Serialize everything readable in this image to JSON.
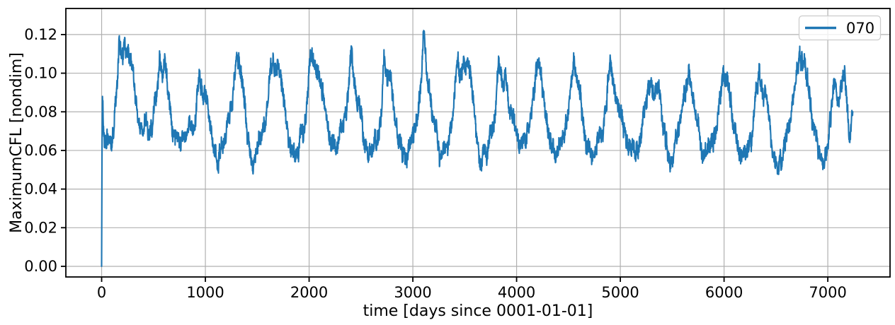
{
  "figure": {
    "background": "#ffffff"
  },
  "chart_data": {
    "type": "line",
    "title": "",
    "xlabel": "time [days since 0001-01-01]",
    "ylabel": "MaximumCFL [nondim]",
    "grid": true,
    "grid_color": "#b0b0b0",
    "axis_color": "#000000",
    "xlim": [
      -345,
      7600
    ],
    "ylim": [
      -0.0055,
      0.1335
    ],
    "xtick_values": [
      0,
      1000,
      2000,
      3000,
      4000,
      5000,
      6000,
      7000
    ],
    "xtick_labels": [
      "0",
      "1000",
      "2000",
      "3000",
      "4000",
      "5000",
      "6000",
      "7000"
    ],
    "ytick_values": [
      0.0,
      0.02,
      0.04,
      0.06,
      0.08,
      0.1,
      0.12
    ],
    "ytick_labels": [
      "0.00",
      "0.02",
      "0.04",
      "0.06",
      "0.08",
      "0.10",
      "0.12"
    ],
    "legend": {
      "position": "upper right",
      "edge_color": "#cccccc",
      "face_color": "rgba(255,255,255,0.8)"
    },
    "series": [
      {
        "name": "070",
        "color": "#1f77b4",
        "line_width": 2.1,
        "x_start": 0,
        "x_end": 7240,
        "description": "Daily maximum CFL, ~20 annual cycles: starts at 0, jumps to ~0.09, oscillates around 0.06-0.12 with summer peaks and winter troughs; absolute max ~0.131 near day 170, typical troughs ~0.055.",
        "envelope_points": [
          [
            0,
            0.0
          ],
          [
            4,
            0.06
          ],
          [
            8,
            0.088
          ],
          [
            14,
            0.076
          ],
          [
            25,
            0.068
          ],
          [
            55,
            0.065
          ],
          [
            85,
            0.065
          ],
          [
            115,
            0.072
          ],
          [
            140,
            0.09
          ],
          [
            155,
            0.105
          ],
          [
            170,
            0.12
          ],
          [
            182,
            0.112
          ],
          [
            195,
            0.104
          ],
          [
            215,
            0.111
          ],
          [
            235,
            0.105
          ],
          [
            258,
            0.111
          ],
          [
            285,
            0.102
          ],
          [
            310,
            0.096
          ],
          [
            335,
            0.085
          ],
          [
            365,
            0.076
          ],
          [
            395,
            0.072
          ],
          [
            420,
            0.077
          ],
          [
            450,
            0.071
          ],
          [
            480,
            0.075
          ],
          [
            510,
            0.081
          ],
          [
            540,
            0.095
          ],
          [
            560,
            0.113
          ],
          [
            580,
            0.104
          ],
          [
            605,
            0.108
          ],
          [
            635,
            0.096
          ],
          [
            665,
            0.081
          ],
          [
            695,
            0.068
          ],
          [
            730,
            0.062
          ],
          [
            765,
            0.06
          ],
          [
            795,
            0.063
          ],
          [
            825,
            0.068
          ],
          [
            855,
            0.072
          ],
          [
            885,
            0.073
          ],
          [
            915,
            0.085
          ],
          [
            938,
            0.101
          ],
          [
            962,
            0.096
          ],
          [
            990,
            0.091
          ],
          [
            1015,
            0.086
          ],
          [
            1045,
            0.075
          ],
          [
            1075,
            0.067
          ],
          [
            1105,
            0.06
          ],
          [
            1140,
            0.058
          ],
          [
            1170,
            0.062
          ],
          [
            1200,
            0.068
          ],
          [
            1230,
            0.076
          ],
          [
            1262,
            0.083
          ],
          [
            1290,
            0.102
          ],
          [
            1305,
            0.108
          ],
          [
            1345,
            0.098
          ],
          [
            1375,
            0.085
          ],
          [
            1405,
            0.072
          ],
          [
            1435,
            0.061
          ],
          [
            1465,
            0.056
          ],
          [
            1495,
            0.059
          ],
          [
            1525,
            0.065
          ],
          [
            1555,
            0.072
          ],
          [
            1585,
            0.08
          ],
          [
            1615,
            0.098
          ],
          [
            1650,
            0.107
          ],
          [
            1675,
            0.101
          ],
          [
            1700,
            0.104
          ],
          [
            1730,
            0.093
          ],
          [
            1760,
            0.081
          ],
          [
            1790,
            0.07
          ],
          [
            1820,
            0.063
          ],
          [
            1850,
            0.058
          ],
          [
            1880,
            0.059
          ],
          [
            1910,
            0.064
          ],
          [
            1940,
            0.07
          ],
          [
            1970,
            0.08
          ],
          [
            2000,
            0.104
          ],
          [
            2030,
            0.105
          ],
          [
            2060,
            0.1
          ],
          [
            2090,
            0.098
          ],
          [
            2120,
            0.092
          ],
          [
            2150,
            0.081
          ],
          [
            2180,
            0.07
          ],
          [
            2210,
            0.062
          ],
          [
            2245,
            0.058
          ],
          [
            2275,
            0.061
          ],
          [
            2305,
            0.066
          ],
          [
            2335,
            0.073
          ],
          [
            2365,
            0.086
          ],
          [
            2395,
            0.108
          ],
          [
            2408,
            0.114
          ],
          [
            2425,
            0.1
          ],
          [
            2455,
            0.089
          ],
          [
            2485,
            0.086
          ],
          [
            2515,
            0.073
          ],
          [
            2545,
            0.061
          ],
          [
            2575,
            0.055
          ],
          [
            2605,
            0.058
          ],
          [
            2635,
            0.063
          ],
          [
            2665,
            0.071
          ],
          [
            2695,
            0.081
          ],
          [
            2725,
            0.105
          ],
          [
            2755,
            0.099
          ],
          [
            2785,
            0.096
          ],
          [
            2815,
            0.086
          ],
          [
            2845,
            0.073
          ],
          [
            2875,
            0.063
          ],
          [
            2905,
            0.057
          ],
          [
            2935,
            0.056
          ],
          [
            2965,
            0.061
          ],
          [
            2995,
            0.066
          ],
          [
            3025,
            0.073
          ],
          [
            3055,
            0.086
          ],
          [
            3085,
            0.102
          ],
          [
            3105,
            0.119
          ],
          [
            3130,
            0.101
          ],
          [
            3160,
            0.091
          ],
          [
            3190,
            0.081
          ],
          [
            3220,
            0.069
          ],
          [
            3250,
            0.059
          ],
          [
            3280,
            0.055
          ],
          [
            3310,
            0.061
          ],
          [
            3340,
            0.066
          ],
          [
            3370,
            0.076
          ],
          [
            3400,
            0.092
          ],
          [
            3430,
            0.109
          ],
          [
            3460,
            0.101
          ],
          [
            3490,
            0.099
          ],
          [
            3520,
            0.109
          ],
          [
            3550,
            0.104
          ],
          [
            3580,
            0.09
          ],
          [
            3610,
            0.071
          ],
          [
            3645,
            0.057
          ],
          [
            3675,
            0.053
          ],
          [
            3705,
            0.059
          ],
          [
            3735,
            0.065
          ],
          [
            3765,
            0.072
          ],
          [
            3795,
            0.081
          ],
          [
            3820,
            0.104
          ],
          [
            3850,
            0.1
          ],
          [
            3885,
            0.099
          ],
          [
            3915,
            0.09
          ],
          [
            3945,
            0.081
          ],
          [
            3975,
            0.071
          ],
          [
            4005,
            0.066
          ],
          [
            4035,
            0.064
          ],
          [
            4065,
            0.066
          ],
          [
            4095,
            0.069
          ],
          [
            4125,
            0.076
          ],
          [
            4155,
            0.089
          ],
          [
            4190,
            0.106
          ],
          [
            4220,
            0.1
          ],
          [
            4250,
            0.091
          ],
          [
            4280,
            0.082
          ],
          [
            4310,
            0.072
          ],
          [
            4340,
            0.064
          ],
          [
            4370,
            0.06
          ],
          [
            4400,
            0.059
          ],
          [
            4425,
            0.061
          ],
          [
            4455,
            0.066
          ],
          [
            4485,
            0.073
          ],
          [
            4515,
            0.086
          ],
          [
            4550,
            0.106
          ],
          [
            4580,
            0.099
          ],
          [
            4610,
            0.089
          ],
          [
            4640,
            0.077
          ],
          [
            4670,
            0.066
          ],
          [
            4700,
            0.061
          ],
          [
            4735,
            0.059
          ],
          [
            4765,
            0.061
          ],
          [
            4795,
            0.064
          ],
          [
            4825,
            0.073
          ],
          [
            4860,
            0.086
          ],
          [
            4900,
            0.103
          ],
          [
            4930,
            0.099
          ],
          [
            4960,
            0.091
          ],
          [
            4990,
            0.083
          ],
          [
            5020,
            0.073
          ],
          [
            5050,
            0.064
          ],
          [
            5080,
            0.059
          ],
          [
            5115,
            0.057
          ],
          [
            5145,
            0.059
          ],
          [
            5175,
            0.062
          ],
          [
            5205,
            0.07
          ],
          [
            5235,
            0.08
          ],
          [
            5265,
            0.092
          ],
          [
            5290,
            0.097
          ],
          [
            5320,
            0.09
          ],
          [
            5350,
            0.094
          ],
          [
            5380,
            0.085
          ],
          [
            5410,
            0.071
          ],
          [
            5445,
            0.059
          ],
          [
            5475,
            0.055
          ],
          [
            5505,
            0.058
          ],
          [
            5535,
            0.062
          ],
          [
            5565,
            0.07
          ],
          [
            5595,
            0.08
          ],
          [
            5625,
            0.093
          ],
          [
            5655,
            0.101
          ],
          [
            5685,
            0.095
          ],
          [
            5715,
            0.085
          ],
          [
            5745,
            0.073
          ],
          [
            5775,
            0.063
          ],
          [
            5805,
            0.058
          ],
          [
            5835,
            0.056
          ],
          [
            5865,
            0.059
          ],
          [
            5895,
            0.062
          ],
          [
            5925,
            0.07
          ],
          [
            5955,
            0.083
          ],
          [
            5985,
            0.097
          ],
          [
            6010,
            0.099
          ],
          [
            6040,
            0.092
          ],
          [
            6070,
            0.082
          ],
          [
            6100,
            0.071
          ],
          [
            6130,
            0.061
          ],
          [
            6160,
            0.056
          ],
          [
            6190,
            0.055
          ],
          [
            6220,
            0.058
          ],
          [
            6250,
            0.062
          ],
          [
            6280,
            0.072
          ],
          [
            6310,
            0.086
          ],
          [
            6340,
            0.102
          ],
          [
            6370,
            0.094
          ],
          [
            6400,
            0.085
          ],
          [
            6430,
            0.073
          ],
          [
            6460,
            0.063
          ],
          [
            6490,
            0.057
          ],
          [
            6520,
            0.056
          ],
          [
            6550,
            0.058
          ],
          [
            6580,
            0.061
          ],
          [
            6610,
            0.067
          ],
          [
            6640,
            0.074
          ],
          [
            6670,
            0.084
          ],
          [
            6700,
            0.096
          ],
          [
            6730,
            0.108
          ],
          [
            6755,
            0.104
          ],
          [
            6790,
            0.099
          ],
          [
            6820,
            0.088
          ],
          [
            6850,
            0.076
          ],
          [
            6880,
            0.066
          ],
          [
            6910,
            0.059
          ],
          [
            6940,
            0.057
          ],
          [
            6970,
            0.061
          ],
          [
            7000,
            0.067
          ],
          [
            7030,
            0.081
          ],
          [
            7060,
            0.099
          ],
          [
            7090,
            0.093
          ],
          [
            7120,
            0.091
          ],
          [
            7150,
            0.099
          ],
          [
            7180,
            0.089
          ],
          [
            7205,
            0.073
          ],
          [
            7218,
            0.067
          ],
          [
            7232,
            0.077
          ],
          [
            7240,
            0.074
          ]
        ],
        "noise": {
          "seed": 20,
          "slow_amp": 0.005,
          "slow_period": 32,
          "fast_amp": 0.0035,
          "fast_period": 9,
          "jitter_amp": 0.004,
          "step_days": 2
        }
      }
    ]
  }
}
